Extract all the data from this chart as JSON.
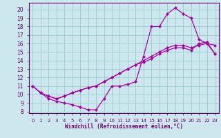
{
  "xlabel": "Windchill (Refroidissement éolien,°C)",
  "bg_color": "#cce8ee",
  "line_color": "#aa00aa",
  "grid_color": "#99cccc",
  "axis_color": "#660066",
  "text_color": "#660066",
  "xlim": [
    -0.5,
    23.5
  ],
  "ylim": [
    7.8,
    20.8
  ],
  "xticks": [
    0,
    1,
    2,
    3,
    4,
    5,
    6,
    7,
    8,
    9,
    10,
    11,
    12,
    13,
    14,
    15,
    16,
    17,
    18,
    19,
    20,
    21,
    22,
    23
  ],
  "yticks": [
    8,
    9,
    10,
    11,
    12,
    13,
    14,
    15,
    16,
    17,
    18,
    19,
    20
  ],
  "line1_x": [
    0,
    1,
    2,
    3,
    4,
    5,
    6,
    7,
    8,
    9,
    10,
    11,
    12,
    13,
    14,
    15,
    16,
    17,
    18,
    19,
    20,
    21,
    22,
    23
  ],
  "line1_y": [
    11.0,
    10.2,
    9.5,
    9.2,
    9.0,
    8.8,
    8.5,
    8.2,
    8.2,
    9.5,
    11.0,
    11.0,
    11.2,
    11.5,
    14.5,
    18.0,
    18.0,
    19.5,
    20.2,
    19.5,
    19.0,
    16.5,
    16.0,
    15.8
  ],
  "line2_x": [
    0,
    1,
    2,
    3,
    4,
    5,
    6,
    7,
    8,
    9,
    10,
    11,
    12,
    13,
    14,
    15,
    16,
    17,
    18,
    19,
    20,
    21,
    22,
    23
  ],
  "line2_y": [
    11.0,
    10.2,
    9.8,
    9.5,
    9.8,
    10.2,
    10.5,
    10.8,
    11.0,
    11.5,
    12.0,
    12.5,
    13.0,
    13.5,
    14.0,
    14.5,
    15.0,
    15.5,
    15.8,
    15.8,
    15.5,
    15.8,
    16.0,
    14.8
  ],
  "line3_x": [
    0,
    1,
    2,
    3,
    4,
    5,
    6,
    7,
    8,
    9,
    10,
    11,
    12,
    13,
    14,
    15,
    16,
    17,
    18,
    19,
    20,
    21,
    22,
    23
  ],
  "line3_y": [
    11.0,
    10.2,
    9.8,
    9.5,
    9.8,
    10.2,
    10.5,
    10.8,
    11.0,
    11.5,
    12.0,
    12.5,
    13.0,
    13.5,
    13.8,
    14.2,
    14.8,
    15.2,
    15.5,
    15.5,
    15.2,
    16.0,
    16.2,
    14.8
  ],
  "markersize": 2.5,
  "linewidth": 0.9
}
